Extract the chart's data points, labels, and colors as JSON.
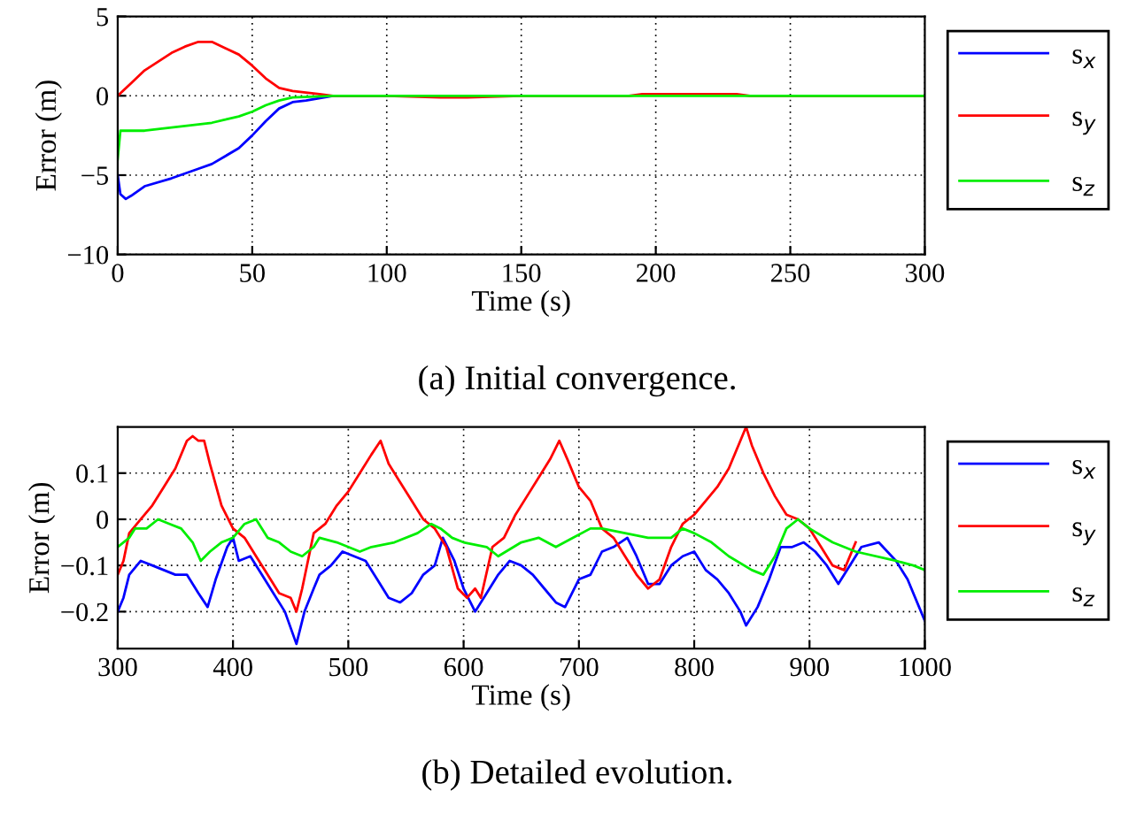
{
  "chart_data": [
    {
      "type": "line",
      "xlabel": "Time (s)",
      "ylabel": "Error (m)",
      "annotations": [
        "(a) Initial convergence."
      ],
      "xlim": [
        0,
        300
      ],
      "xticks": [
        0,
        50,
        100,
        150,
        200,
        250,
        300
      ],
      "ylim": [
        -10,
        5
      ],
      "yticks": [
        -10,
        -5,
        0,
        5
      ],
      "grid": true,
      "legend": "top right",
      "line_style": "solid",
      "series": [
        {
          "name": "s$_{x}$",
          "color": "#0000ff",
          "x": [
            0,
            1,
            3,
            5,
            10,
            20,
            30,
            35,
            40,
            45,
            50,
            55,
            60,
            65,
            70,
            80,
            100
          ],
          "values": [
            -5,
            -6.2,
            -6.5,
            -6.3,
            -5.7,
            -5.2,
            -4.6,
            -4.3,
            -3.8,
            -3.3,
            -2.5,
            -1.6,
            -0.8,
            -0.4,
            -0.3,
            0,
            0
          ]
        },
        {
          "name": "s$_{y}$",
          "color": "#ff0000",
          "x": [
            0,
            5,
            10,
            20,
            25,
            30,
            35,
            40,
            45,
            50,
            55,
            60,
            65,
            75,
            80,
            100,
            120,
            130,
            150,
            190,
            195,
            230,
            235,
            300
          ],
          "values": [
            0,
            0.8,
            1.6,
            2.7,
            3.1,
            3.4,
            3.4,
            3.0,
            2.6,
            1.9,
            1.1,
            0.5,
            0.3,
            0.1,
            0,
            0,
            -0.1,
            -0.1,
            0,
            0,
            0.1,
            0.1,
            0,
            0
          ]
        },
        {
          "name": "s$_{z}$",
          "color": "#00ee00",
          "x": [
            0,
            1,
            10,
            20,
            30,
            35,
            40,
            45,
            50,
            55,
            60,
            65,
            80,
            300
          ],
          "values": [
            -4,
            -2.2,
            -2.2,
            -2.0,
            -1.8,
            -1.7,
            -1.5,
            -1.3,
            -1.0,
            -0.6,
            -0.3,
            -0.1,
            0,
            0
          ]
        }
      ]
    },
    {
      "type": "line",
      "xlabel": "Time (s)",
      "ylabel": "Error (m)",
      "annotations": [
        "(b) Detailed evolution."
      ],
      "xlim": [
        300,
        1000
      ],
      "xticks": [
        300,
        400,
        500,
        600,
        700,
        800,
        900,
        1000
      ],
      "ylim": [
        -0.28,
        0.2
      ],
      "yticks": [
        -0.2,
        -0.1,
        0,
        0.1
      ],
      "grid": true,
      "legend": "top right",
      "line_style": "solid",
      "series": [
        {
          "name": "s$_{x}$",
          "color": "#0000ff",
          "x": [
            300,
            305,
            310,
            320,
            330,
            340,
            350,
            360,
            370,
            378,
            385,
            395,
            400,
            405,
            415,
            425,
            435,
            445,
            455,
            462,
            470,
            475,
            485,
            495,
            505,
            515,
            525,
            535,
            545,
            555,
            565,
            575,
            582,
            592,
            600,
            610,
            620,
            630,
            640,
            650,
            660,
            670,
            680,
            688,
            700,
            710,
            720,
            730,
            742,
            750,
            760,
            770,
            780,
            790,
            800,
            810,
            820,
            830,
            840,
            845,
            855,
            865,
            875,
            885,
            895,
            905,
            915,
            925,
            935,
            945,
            960,
            975,
            985,
            995,
            1000
          ],
          "values": [
            -0.2,
            -0.17,
            -0.12,
            -0.09,
            -0.1,
            -0.11,
            -0.12,
            -0.12,
            -0.16,
            -0.19,
            -0.13,
            -0.06,
            -0.04,
            -0.09,
            -0.08,
            -0.12,
            -0.16,
            -0.2,
            -0.27,
            -0.2,
            -0.15,
            -0.12,
            -0.1,
            -0.07,
            -0.08,
            -0.09,
            -0.13,
            -0.17,
            -0.18,
            -0.16,
            -0.12,
            -0.1,
            -0.04,
            -0.09,
            -0.15,
            -0.2,
            -0.16,
            -0.12,
            -0.09,
            -0.1,
            -0.12,
            -0.15,
            -0.18,
            -0.19,
            -0.13,
            -0.12,
            -0.07,
            -0.06,
            -0.04,
            -0.08,
            -0.14,
            -0.14,
            -0.1,
            -0.08,
            -0.07,
            -0.11,
            -0.13,
            -0.16,
            -0.2,
            -0.23,
            -0.19,
            -0.13,
            -0.06,
            -0.06,
            -0.05,
            -0.07,
            -0.1,
            -0.14,
            -0.1,
            -0.06,
            -0.05,
            -0.09,
            -0.13,
            -0.19,
            -0.22
          ]
        },
        {
          "name": "s$_{y}$",
          "color": "#ff0000",
          "x": [
            300,
            305,
            310,
            320,
            330,
            340,
            350,
            360,
            365,
            370,
            375,
            380,
            390,
            400,
            410,
            420,
            430,
            440,
            450,
            455,
            460,
            470,
            480,
            490,
            500,
            510,
            520,
            528,
            535,
            545,
            555,
            565,
            575,
            585,
            595,
            603,
            610,
            615,
            625,
            635,
            645,
            655,
            665,
            675,
            683,
            690,
            700,
            710,
            720,
            730,
            740,
            750,
            760,
            770,
            780,
            790,
            800,
            810,
            820,
            830,
            840,
            845,
            850,
            860,
            870,
            880,
            890,
            900,
            910,
            920,
            930,
            940
          ],
          "values": [
            -0.12,
            -0.09,
            -0.03,
            0.0,
            0.03,
            0.07,
            0.11,
            0.17,
            0.18,
            0.17,
            0.17,
            0.12,
            0.03,
            -0.02,
            -0.04,
            -0.08,
            -0.12,
            -0.16,
            -0.17,
            -0.2,
            -0.15,
            -0.03,
            -0.01,
            0.03,
            0.06,
            0.1,
            0.14,
            0.17,
            0.12,
            0.08,
            0.04,
            0.0,
            -0.02,
            -0.06,
            -0.15,
            -0.17,
            -0.15,
            -0.17,
            -0.06,
            -0.04,
            0.01,
            0.05,
            0.09,
            0.13,
            0.17,
            0.13,
            0.07,
            0.04,
            -0.02,
            -0.04,
            -0.08,
            -0.12,
            -0.15,
            -0.13,
            -0.06,
            -0.01,
            0.01,
            0.04,
            0.07,
            0.11,
            0.17,
            0.2,
            0.16,
            0.1,
            0.05,
            0.01,
            0.0,
            -0.02,
            -0.06,
            -0.1,
            -0.11,
            -0.05
          ]
        },
        {
          "name": "s$_{z}$",
          "color": "#00ee00",
          "x": [
            300,
            310,
            315,
            325,
            335,
            345,
            355,
            365,
            372,
            380,
            390,
            400,
            410,
            420,
            430,
            440,
            450,
            460,
            470,
            475,
            490,
            500,
            510,
            520,
            540,
            560,
            572,
            580,
            590,
            600,
            620,
            630,
            650,
            665,
            680,
            695,
            710,
            720,
            740,
            760,
            780,
            790,
            800,
            815,
            830,
            850,
            860,
            870,
            880,
            890,
            900,
            920,
            940,
            975,
            990,
            1000
          ],
          "values": [
            -0.06,
            -0.04,
            -0.02,
            -0.02,
            0.0,
            -0.01,
            -0.02,
            -0.05,
            -0.09,
            -0.07,
            -0.05,
            -0.04,
            -0.01,
            0.0,
            -0.04,
            -0.05,
            -0.07,
            -0.08,
            -0.06,
            -0.04,
            -0.05,
            -0.06,
            -0.07,
            -0.06,
            -0.05,
            -0.03,
            -0.01,
            -0.02,
            -0.04,
            -0.05,
            -0.06,
            -0.08,
            -0.05,
            -0.04,
            -0.06,
            -0.04,
            -0.02,
            -0.02,
            -0.03,
            -0.04,
            -0.04,
            -0.02,
            -0.03,
            -0.05,
            -0.08,
            -0.11,
            -0.12,
            -0.08,
            -0.02,
            0.0,
            -0.02,
            -0.05,
            -0.07,
            -0.09,
            -0.1,
            -0.11
          ]
        }
      ]
    }
  ]
}
